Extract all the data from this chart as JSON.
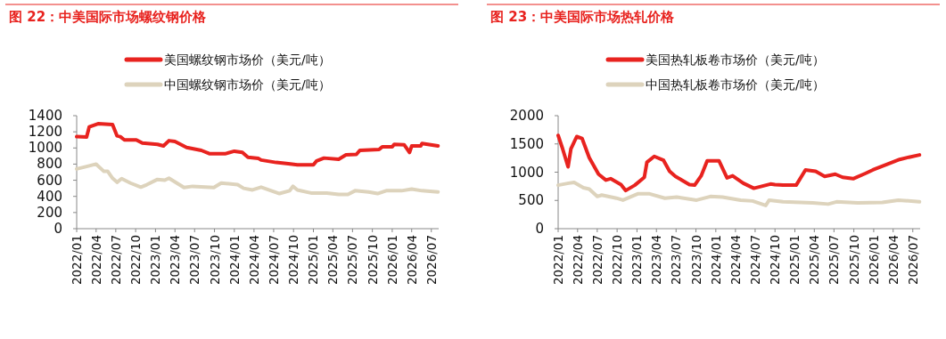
{
  "chart_data": [
    {
      "type": "line",
      "title": "图 22：中美国际市场螺纹钢价格",
      "legend": "top",
      "xlim": [
        "2022-01",
        "2026-08-04"
      ],
      "ylim": [
        0,
        1400
      ],
      "yticks": [
        0,
        200,
        400,
        600,
        800,
        1000,
        1200,
        1400
      ],
      "xticks": [
        {
          "value": "2022-01",
          "label": "2022/01"
        },
        {
          "value": "2022-04",
          "label": "2022/04"
        },
        {
          "value": "2022-07",
          "label": "2022/07"
        },
        {
          "value": "2022-10",
          "label": "2022/10"
        },
        {
          "value": "2023-01",
          "label": "2023/01"
        },
        {
          "value": "2023-04",
          "label": "2023/04"
        },
        {
          "value": "2023-07",
          "label": "2023/07"
        },
        {
          "value": "2023-10",
          "label": "2023/10"
        },
        {
          "value": "2024-01",
          "label": "2024/01"
        },
        {
          "value": "2024-04",
          "label": "2024/04"
        },
        {
          "value": "2024-07",
          "label": "2024/07"
        },
        {
          "value": "2024-10",
          "label": "2024/10"
        },
        {
          "value": "2025-01",
          "label": "2025/01"
        },
        {
          "value": "2025-04",
          "label": "2025/04"
        },
        {
          "value": "2025-07",
          "label": "2025/07"
        },
        {
          "value": "2025-10",
          "label": "2025/10"
        },
        {
          "value": "2026-01",
          "label": "2026/01"
        },
        {
          "value": "2026-04",
          "label": "2026/04"
        },
        {
          "value": "2026-07",
          "label": "2026/07"
        }
      ],
      "series": [
        {
          "name": "美国螺纹钢市场价（美元/吨）",
          "color": "#e8231f",
          "x": [
            "2022-01-01",
            "2022-02-16",
            "2022-02-28",
            "2022-04-10",
            "2022-06-16",
            "2022-07-07",
            "2022-07-22",
            "2022-08-10",
            "2022-10-04",
            "2022-11-01",
            "2023-01-10",
            "2023-02-07",
            "2023-03-04",
            "2023-04-01",
            "2023-05-25",
            "2023-08-01",
            "2023-09-07",
            "2023-11-22",
            "2024-01-01",
            "2024-02-07",
            "2024-03-04",
            "2024-04-22",
            "2024-05-04",
            "2024-07-13",
            "2024-09-07",
            "2024-10-19",
            "2025-01-01",
            "2025-01-16",
            "2025-02-19",
            "2025-04-28",
            "2025-06-01",
            "2025-07-19",
            "2025-08-04",
            "2025-11-01",
            "2025-11-16",
            "2026-01-01",
            "2026-01-10",
            "2026-02-25",
            "2026-03-22",
            "2026-04-01",
            "2026-05-13",
            "2026-05-19",
            "2026-08-01"
          ],
          "values": [
            1140,
            1135,
            1260,
            1300,
            1290,
            1150,
            1140,
            1100,
            1100,
            1060,
            1045,
            1025,
            1090,
            1080,
            1005,
            970,
            930,
            930,
            960,
            945,
            885,
            870,
            850,
            820,
            805,
            790,
            790,
            840,
            875,
            860,
            915,
            920,
            970,
            980,
            1015,
            1015,
            1045,
            1040,
            945,
            1025,
            1025,
            1055,
            1025
          ]
        },
        {
          "name": "中国螺纹钢市场价（美元/吨）",
          "color": "#ddd3bc",
          "x": [
            "2022-01-01",
            "2022-02-16",
            "2022-04-01",
            "2022-05-07",
            "2022-05-25",
            "2022-06-16",
            "2022-07-07",
            "2022-07-28",
            "2022-09-07",
            "2022-10-25",
            "2022-11-22",
            "2023-01-10",
            "2023-02-13",
            "2023-03-04",
            "2023-05-13",
            "2023-06-22",
            "2023-09-28",
            "2023-11-01",
            "2024-01-16",
            "2024-02-13",
            "2024-03-25",
            "2024-05-04",
            "2024-07-28",
            "2024-09-13",
            "2024-09-28",
            "2024-10-19",
            "2024-12-25",
            "2025-03-04",
            "2025-04-28",
            "2025-06-10",
            "2025-07-13",
            "2025-09-13",
            "2025-10-25",
            "2025-12-04",
            "2026-02-13",
            "2026-04-01",
            "2026-05-19",
            "2026-08-01"
          ],
          "values": [
            740,
            770,
            800,
            710,
            710,
            625,
            575,
            620,
            565,
            515,
            545,
            610,
            600,
            625,
            510,
            525,
            510,
            565,
            545,
            500,
            480,
            515,
            435,
            470,
            525,
            480,
            440,
            440,
            425,
            425,
            470,
            455,
            435,
            470,
            470,
            490,
            470,
            455
          ]
        }
      ]
    },
    {
      "type": "line",
      "title": "图 23：中美国际市场热轧价格",
      "legend": "top",
      "xlim": [
        "2022-01",
        "2026-08-04"
      ],
      "ylim": [
        0,
        2000
      ],
      "yticks": [
        0,
        500,
        1000,
        1500,
        2000
      ],
      "xticks": [
        {
          "value": "2022-01",
          "label": "2022/01"
        },
        {
          "value": "2022-04",
          "label": "2022/04"
        },
        {
          "value": "2022-07",
          "label": "2022/07"
        },
        {
          "value": "2022-10",
          "label": "2022/10"
        },
        {
          "value": "2023-01",
          "label": "2023/01"
        },
        {
          "value": "2023-04",
          "label": "2023/04"
        },
        {
          "value": "2023-07",
          "label": "2023/07"
        },
        {
          "value": "2023-10",
          "label": "2023/10"
        },
        {
          "value": "2024-01",
          "label": "2024/01"
        },
        {
          "value": "2024-04",
          "label": "2024/04"
        },
        {
          "value": "2024-07",
          "label": "2024/07"
        },
        {
          "value": "2024-10",
          "label": "2024/10"
        },
        {
          "value": "2025-01",
          "label": "2025/01"
        },
        {
          "value": "2025-04",
          "label": "2025/04"
        },
        {
          "value": "2025-07",
          "label": "2025/07"
        },
        {
          "value": "2025-10",
          "label": "2025/10"
        },
        {
          "value": "2026-01",
          "label": "2026/01"
        },
        {
          "value": "2026-04",
          "label": "2026/04"
        },
        {
          "value": "2026-07",
          "label": "2026/07"
        }
      ],
      "series": [
        {
          "name": "美国热轧板卷市场价（美元/吨）",
          "color": "#e8231f",
          "x": [
            "2022-01-01",
            "2022-01-22",
            "2022-02-16",
            "2022-03-01",
            "2022-03-28",
            "2022-04-22",
            "2022-05-25",
            "2022-07-07",
            "2022-08-10",
            "2022-09-01",
            "2022-10-19",
            "2022-11-10",
            "2022-12-22",
            "2023-02-04",
            "2023-02-16",
            "2023-03-22",
            "2023-05-04",
            "2023-06-01",
            "2023-06-28",
            "2023-09-01",
            "2023-09-25",
            "2023-10-25",
            "2023-11-22",
            "2024-01-16",
            "2024-02-22",
            "2024-03-19",
            "2024-05-07",
            "2024-06-25",
            "2024-09-10",
            "2024-10-01",
            "2024-11-07",
            "2025-01-07",
            "2025-02-19",
            "2025-04-07",
            "2025-05-19",
            "2025-07-07",
            "2025-08-10",
            "2025-09-28",
            "2025-11-25",
            "2025-12-28",
            "2026-03-07",
            "2026-05-01",
            "2026-06-13",
            "2026-08-01"
          ],
          "values": [
            1650,
            1410,
            1095,
            1410,
            1630,
            1595,
            1255,
            965,
            860,
            885,
            780,
            675,
            770,
            910,
            1175,
            1280,
            1210,
            1015,
            925,
            780,
            770,
            935,
            1200,
            1200,
            900,
            935,
            805,
            715,
            790,
            780,
            770,
            770,
            1040,
            1015,
            925,
            965,
            910,
            885,
            980,
            1040,
            1145,
            1225,
            1265,
            1305
          ]
        },
        {
          "name": "中国热轧板卷市场价（美元/吨）",
          "color": "#ddd3bc",
          "x": [
            "2022-01-01",
            "2022-02-19",
            "2022-03-16",
            "2022-04-28",
            "2022-05-25",
            "2022-07-01",
            "2022-07-22",
            "2022-09-28",
            "2022-10-28",
            "2023-01-07",
            "2023-02-25",
            "2023-05-10",
            "2023-07-04",
            "2023-10-04",
            "2023-12-07",
            "2024-02-01",
            "2024-04-25",
            "2024-06-19",
            "2024-08-19",
            "2024-09-04",
            "2024-11-07",
            "2025-03-25",
            "2025-06-04",
            "2025-07-13",
            "2025-10-19",
            "2026-02-10",
            "2026-04-25",
            "2026-08-01"
          ],
          "values": [
            770,
            805,
            820,
            725,
            700,
            570,
            595,
            540,
            505,
            620,
            620,
            540,
            560,
            505,
            570,
            560,
            505,
            490,
            410,
            505,
            475,
            455,
            435,
            475,
            455,
            465,
            505,
            475
          ]
        }
      ]
    }
  ]
}
